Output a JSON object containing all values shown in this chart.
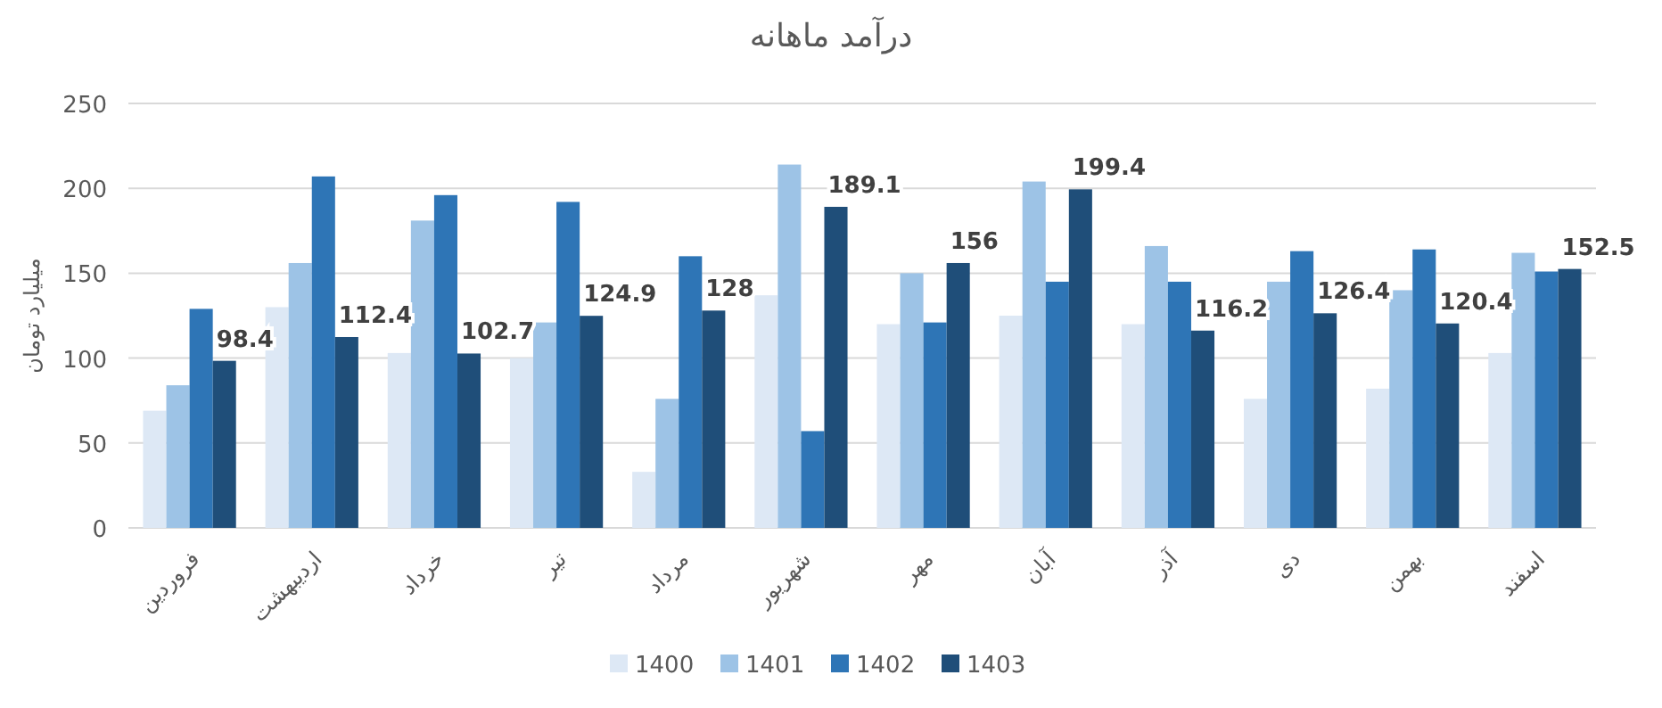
{
  "chart_data": {
    "type": "bar",
    "title": "درآمد ماهانه",
    "ylabel": "میلیارد تومان",
    "categories": [
      "فروردین",
      "اردیبهشت",
      "خرداد",
      "تیر",
      "مرداد",
      "شهریور",
      "مهر",
      "آبان",
      "آذر",
      "دی",
      "بهمن",
      "اسفند"
    ],
    "series": [
      {
        "name": "1400",
        "color": "#dde8f5",
        "values": [
          69,
          130,
          103,
          100,
          33,
          137,
          120,
          125,
          120,
          76,
          82,
          103
        ]
      },
      {
        "name": "1401",
        "color": "#9dc3e6",
        "values": [
          84,
          156,
          181,
          121,
          76,
          214,
          150,
          204,
          166,
          145,
          140,
          162
        ]
      },
      {
        "name": "1402",
        "color": "#2e75b6",
        "values": [
          129,
          207,
          196,
          192,
          160,
          57,
          121,
          145,
          145,
          163,
          164,
          151
        ]
      },
      {
        "name": "1403",
        "color": "#1f4e79",
        "values": [
          98.4,
          112.4,
          102.7,
          124.9,
          128,
          189.1,
          156,
          199.4,
          116.2,
          126.4,
          120.4,
          152.5
        ],
        "value_labels": [
          "98.4",
          "112.4",
          "102.7",
          "124.9",
          "128",
          "189.1",
          "156",
          "199.4",
          "116.2",
          "126.4",
          "120.4",
          "152.5"
        ]
      }
    ],
    "ylim": [
      0,
      250
    ],
    "yticks": [
      0,
      50,
      100,
      150,
      200,
      250
    ],
    "grid": "y",
    "legend": "bottom"
  }
}
